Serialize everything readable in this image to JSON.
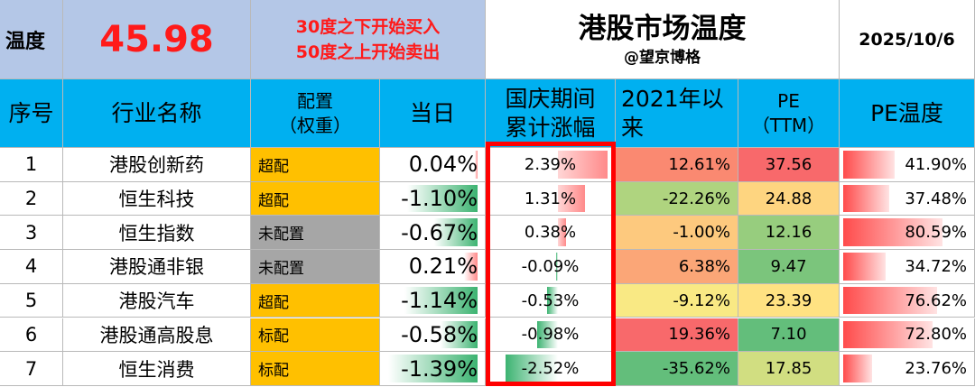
{
  "header": {
    "temp_label": "温度",
    "temp_value": "45.98",
    "rule_line1": "30度之下开始买入",
    "rule_line2": "50度之上开始卖出",
    "title": "港股市场温度",
    "author": "@望京博格",
    "date": "2025/10/6"
  },
  "columns": {
    "index": "序号",
    "industry": "行业名称",
    "allocation_line1": "配置",
    "allocation_line2": "（权重）",
    "today": "当日",
    "holiday_line1": "国庆期间",
    "holiday_line2": "累计涨幅",
    "since2021_line1": "2021年以",
    "since2021_line2": "来",
    "pe_line1": "PE",
    "pe_line2": "（TTM）",
    "pe_temp": "PE温度"
  },
  "rows": [
    {
      "index": "1",
      "name": "港股创新药",
      "allocation": "超配",
      "today": "0.04%",
      "today_val": 0.04,
      "holiday": "2.39%",
      "holiday_val": 2.39,
      "since2021": "12.61%",
      "since2021_val": 12.61,
      "pe": "37.56",
      "pe_val": 37.56,
      "pe_temp": "41.90%",
      "pe_temp_val": 41.9
    },
    {
      "index": "2",
      "name": "恒生科技",
      "allocation": "超配",
      "today": "-1.10%",
      "today_val": -1.1,
      "holiday": "1.31%",
      "holiday_val": 1.31,
      "since2021": "-22.26%",
      "since2021_val": -22.26,
      "pe": "24.88",
      "pe_val": 24.88,
      "pe_temp": "37.48%",
      "pe_temp_val": 37.48
    },
    {
      "index": "3",
      "name": "恒生指数",
      "allocation": "未配置",
      "today": "-0.67%",
      "today_val": -0.67,
      "holiday": "0.38%",
      "holiday_val": 0.38,
      "since2021": "-1.00%",
      "since2021_val": -1.0,
      "pe": "12.16",
      "pe_val": 12.16,
      "pe_temp": "80.59%",
      "pe_temp_val": 80.59
    },
    {
      "index": "4",
      "name": "港股通非银",
      "allocation": "未配置",
      "today": "0.21%",
      "today_val": 0.21,
      "holiday": "-0.09%",
      "holiday_val": -0.09,
      "since2021": "6.38%",
      "since2021_val": 6.38,
      "pe": "9.47",
      "pe_val": 9.47,
      "pe_temp": "34.72%",
      "pe_temp_val": 34.72
    },
    {
      "index": "5",
      "name": "港股汽车",
      "allocation": "超配",
      "today": "-1.14%",
      "today_val": -1.14,
      "holiday": "-0.53%",
      "holiday_val": -0.53,
      "since2021": "-9.12%",
      "since2021_val": -9.12,
      "pe": "23.39",
      "pe_val": 23.39,
      "pe_temp": "76.62%",
      "pe_temp_val": 76.62
    },
    {
      "index": "6",
      "name": "港股通高股息",
      "allocation": "标配",
      "today": "-0.58%",
      "today_val": -0.58,
      "holiday": "-0.98%",
      "holiday_val": -0.98,
      "since2021": "19.36%",
      "since2021_val": 19.36,
      "pe": "7.10",
      "pe_val": 7.1,
      "pe_temp": "72.80%",
      "pe_temp_val": 72.8
    },
    {
      "index": "7",
      "name": "恒生消费",
      "allocation": "标配",
      "today": "-1.39%",
      "today_val": -1.39,
      "holiday": "-2.52%",
      "holiday_val": -2.52,
      "since2021": "-35.62%",
      "since2021_val": -35.62,
      "pe": "17.85",
      "pe_val": 17.85,
      "pe_temp": "23.76%",
      "pe_temp_val": 23.76
    }
  ],
  "colors": {
    "header_blue": "#00b0f0",
    "top_lavender": "#b4c7e7",
    "alert_red": "#ff0000",
    "alloc_over": "#ffc000",
    "alloc_none": "#a6a6a6",
    "alloc_std": "#ffc000",
    "bar_positive": "#ff8a8a",
    "bar_negative": "#3cb371"
  }
}
